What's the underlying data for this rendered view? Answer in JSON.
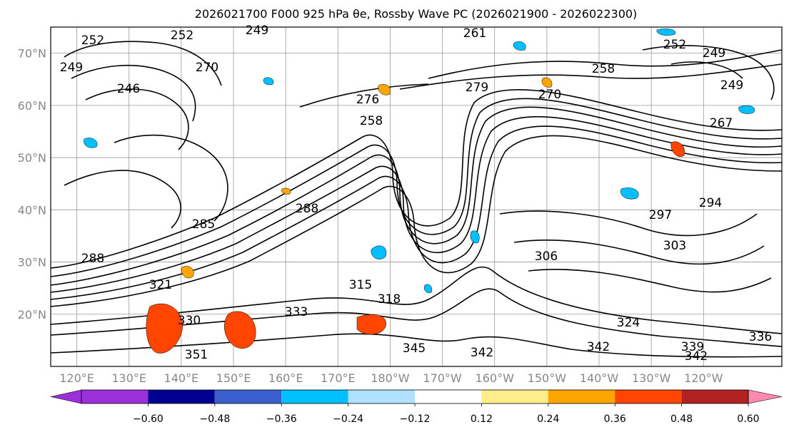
{
  "title": "2026021700 F000 925 hPa θe, Rossby Wave PC (2026021900 - 2026022300)",
  "map": {
    "lat_labels": [
      "70°N",
      "60°N",
      "50°N",
      "40°N",
      "30°N",
      "20°N"
    ],
    "lon_labels": [
      "120°E",
      "130°E",
      "140°E",
      "150°E",
      "160°E",
      "170°E",
      "180°W",
      "170°W",
      "160°W",
      "150°W",
      "140°W",
      "130°W",
      "120°W"
    ],
    "lat_range": [
      10,
      75
    ],
    "lon_range": [
      115,
      255
    ],
    "contour_labels": [
      "252",
      "249",
      "252",
      "261",
      "252",
      "249",
      "249",
      "246",
      "258",
      "267",
      "279",
      "270",
      "258",
      "276",
      "297",
      "303",
      "306",
      "288",
      "321",
      "315",
      "318",
      "333",
      "330",
      "351",
      "324",
      "342",
      "345",
      "342",
      "336",
      "339",
      "342",
      "285",
      "288",
      "270",
      "294",
      "249"
    ]
  },
  "colorbar": {
    "tick_labels": [
      "−0.60",
      "−0.48",
      "−0.36",
      "−0.24",
      "−0.12",
      "0.12",
      "0.24",
      "0.36",
      "0.48",
      "0.60"
    ],
    "colors": {
      "under": "#9b30d9",
      "bins": [
        "#9b30d9",
        "#000090",
        "#3a5fcd",
        "#00bfff",
        "#b0e2ff",
        "#ffffff",
        "#ffec8b",
        "#ffa500",
        "#ff4500",
        "#b22222"
      ],
      "over": "#ff8ab0"
    }
  },
  "style": {
    "land_line": "#000000",
    "grid_line": "#999999",
    "label_color": "#888888"
  }
}
